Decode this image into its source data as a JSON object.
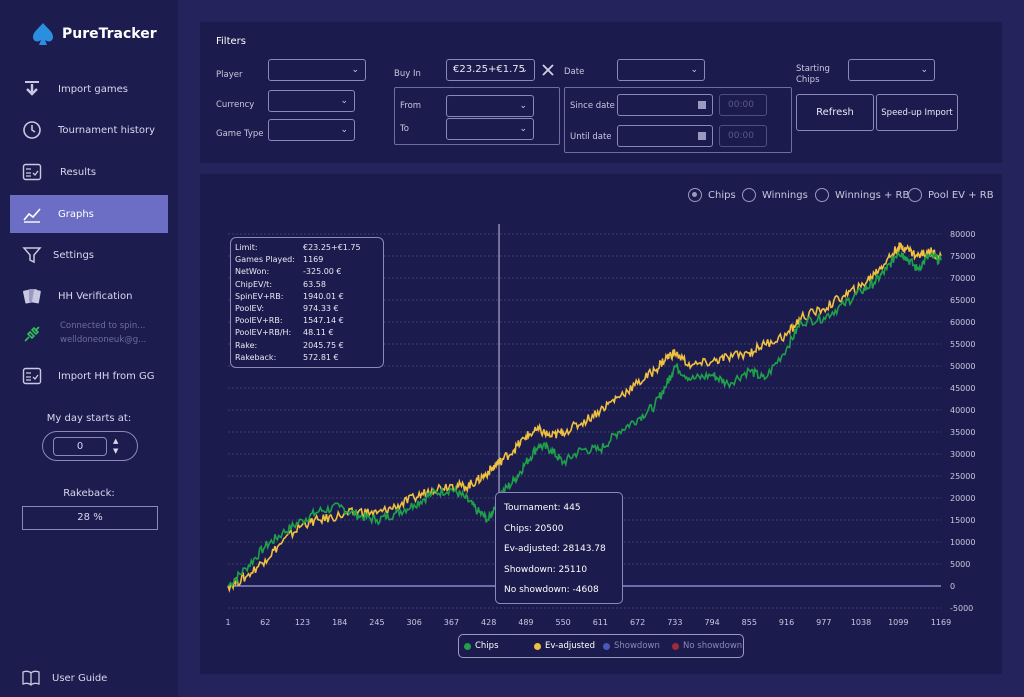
{
  "app": {
    "name": "PureTracker"
  },
  "sidebar": {
    "items": [
      {
        "label": "Import games"
      },
      {
        "label": "Tournament history"
      },
      {
        "label": "Results"
      },
      {
        "label": "Graphs"
      },
      {
        "label": "Settings"
      },
      {
        "label": "HH Verification"
      },
      {
        "label": "Connected to spin...",
        "sub": "welldoneoneuk@g..."
      },
      {
        "label": "Import HH from GG"
      }
    ],
    "day_start_label": "My day starts at:",
    "day_start_value": "0",
    "rakeback_label": "Rakeback:",
    "rakeback_value": "28 %",
    "user_guide": "User Guide"
  },
  "filters": {
    "title": "Filters",
    "player_label": "Player",
    "currency_label": "Currency",
    "gametype_label": "Game Type",
    "buyin_label": "Buy In",
    "buyin_value": "€23.25+€1.75",
    "from_label": "From",
    "to_label": "To",
    "date_label": "Date",
    "since_label": "Since date",
    "until_label": "Until date",
    "time_placeholder": "00:00",
    "starting_chips_label": "Starting\nChips",
    "refresh_label": "Refresh",
    "speedup_label": "Speed-up Import"
  },
  "chart_options": [
    {
      "label": "Chips",
      "selected": true
    },
    {
      "label": "Winnings",
      "selected": false
    },
    {
      "label": "Winnings + RB",
      "selected": false
    },
    {
      "label": "Pool EV + RB",
      "selected": false
    }
  ],
  "stats": [
    {
      "key": "Limit:",
      "value": "€23.25+€1.75"
    },
    {
      "key": "Games Played:",
      "value": "1169"
    },
    {
      "key": "NetWon:",
      "value": "-325.00 €"
    },
    {
      "key": "ChipEV/t:",
      "value": "63.58"
    },
    {
      "key": "SpinEV+RB:",
      "value": "1940.01 €"
    },
    {
      "key": "PoolEV:",
      "value": "974.33 €"
    },
    {
      "key": "PoolEV+RB:",
      "value": "1547.14 €"
    },
    {
      "key": "PoolEV+RB/H:",
      "value": "48.11 €"
    },
    {
      "key": "Rake:",
      "value": "2045.75 €"
    },
    {
      "key": "Rakeback:",
      "value": "572.81 €"
    }
  ],
  "tooltip": {
    "tournament": "Tournament: 445",
    "chips": "Chips: 20500",
    "ev": "Ev-adjusted: 28143.78",
    "showdown": "Showdown: 25110",
    "noshowdown": "No showdown: -4608"
  },
  "colors": {
    "chips": "#1fa04a",
    "ev": "#f0c040",
    "showdown": "#4a58b8",
    "noshowdown": "#a02a3a"
  },
  "chart_data": {
    "type": "line",
    "title": "",
    "xlabel": "",
    "ylabel": "",
    "xlim": [
      1,
      1169
    ],
    "ylim": [
      -5000,
      80000
    ],
    "x_ticks": [
      1,
      62,
      123,
      184,
      245,
      306,
      367,
      428,
      489,
      550,
      611,
      672,
      733,
      794,
      855,
      916,
      977,
      1038,
      1099,
      1169
    ],
    "y_ticks": [
      -5000,
      0,
      5000,
      10000,
      15000,
      20000,
      25000,
      30000,
      35000,
      40000,
      45000,
      50000,
      55000,
      60000,
      65000,
      70000,
      75000,
      80000
    ],
    "crosshair_x": 445,
    "legend": [
      "Chips",
      "Ev-adjusted",
      "Showdown",
      "No showdown"
    ],
    "series": [
      {
        "name": "Chips",
        "x": [
          1,
          30,
          62,
          90,
          123,
          150,
          184,
          215,
          245,
          275,
          306,
          335,
          367,
          390,
          410,
          428,
          445,
          470,
          489,
          510,
          530,
          550,
          580,
          611,
          640,
          672,
          700,
          720,
          733,
          760,
          794,
          820,
          855,
          880,
          916,
          940,
          977,
          1010,
          1038,
          1060,
          1080,
          1099,
          1110,
          1130,
          1150,
          1169
        ],
        "y": [
          0,
          4000,
          9000,
          12000,
          15000,
          17000,
          18000,
          16000,
          15000,
          16500,
          18500,
          21000,
          22000,
          20000,
          17000,
          15000,
          20500,
          24000,
          28000,
          32000,
          31000,
          28000,
          31000,
          31000,
          35000,
          38000,
          41000,
          46000,
          50000,
          47000,
          48000,
          46000,
          49000,
          47000,
          54000,
          60000,
          61000,
          64000,
          67000,
          69000,
          72000,
          76000,
          75000,
          72000,
          75000,
          74000
        ]
      },
      {
        "name": "Ev-adjusted",
        "x": [
          1,
          30,
          62,
          90,
          123,
          150,
          184,
          215,
          245,
          275,
          306,
          335,
          367,
          390,
          410,
          428,
          445,
          470,
          489,
          510,
          530,
          550,
          580,
          611,
          640,
          672,
          700,
          720,
          733,
          760,
          794,
          820,
          855,
          880,
          916,
          940,
          977,
          1010,
          1038,
          1060,
          1080,
          1099,
          1110,
          1130,
          1150,
          1169
        ],
        "y": [
          0,
          2000,
          6000,
          10000,
          14000,
          15000,
          16000,
          17000,
          16500,
          18000,
          20000,
          22000,
          23000,
          22500,
          24000,
          26000,
          28143.78,
          31000,
          34000,
          35500,
          34000,
          35000,
          37000,
          40000,
          43000,
          46000,
          49000,
          52000,
          53000,
          50000,
          51000,
          52000,
          53000,
          55000,
          57000,
          61000,
          63000,
          66000,
          68000,
          71000,
          74000,
          77000,
          77000,
          75000,
          76000,
          75000
        ]
      }
    ]
  }
}
